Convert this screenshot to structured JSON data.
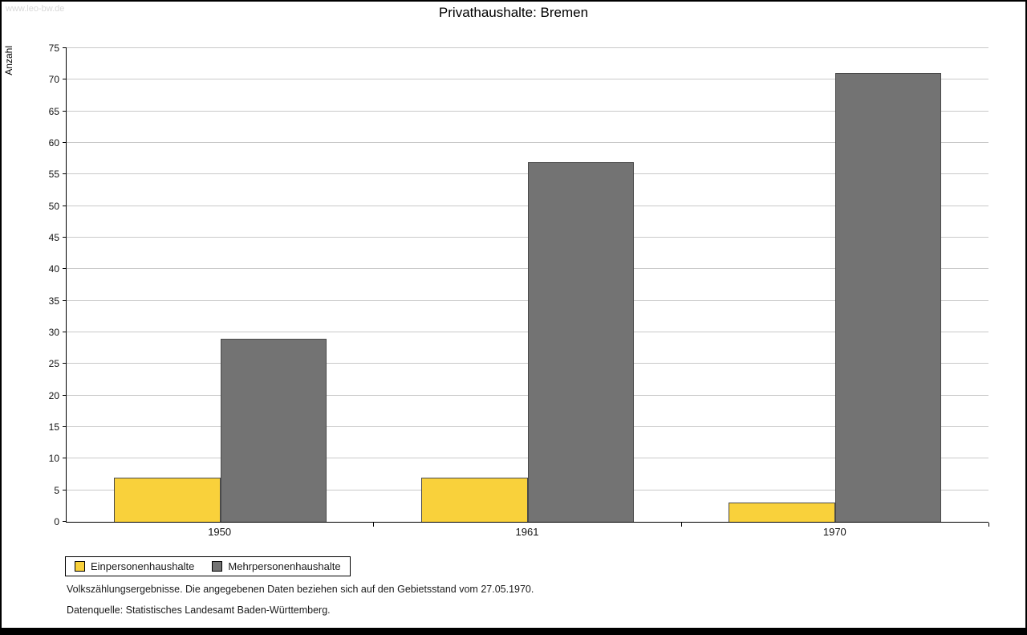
{
  "watermark": "www.leo-bw.de",
  "title": "Privathaushalte: Bremen",
  "chart_data": {
    "type": "bar",
    "title": "Privathaushalte: Bremen",
    "categories": [
      "1950",
      "1961",
      "1970"
    ],
    "series": [
      {
        "name": "Einpersonenhaushalte",
        "color": "#F9D13B",
        "values": [
          7,
          7,
          3
        ]
      },
      {
        "name": "Mehrpersonenhaushalte",
        "color": "#737373",
        "values": [
          29,
          57,
          71
        ]
      }
    ],
    "xlabel": "",
    "ylabel": "Anzahl",
    "ylim": [
      0,
      75
    ],
    "ytick_step": 5,
    "grid": true,
    "legend_position": "bottom-left"
  },
  "notes": {
    "line1": "Volkszählungsergebnisse. Die angegebenen Daten beziehen sich auf den Gebietsstand vom 27.05.1970.",
    "line2": "Datenquelle: Statistisches Landesamt Baden-Württemberg."
  }
}
